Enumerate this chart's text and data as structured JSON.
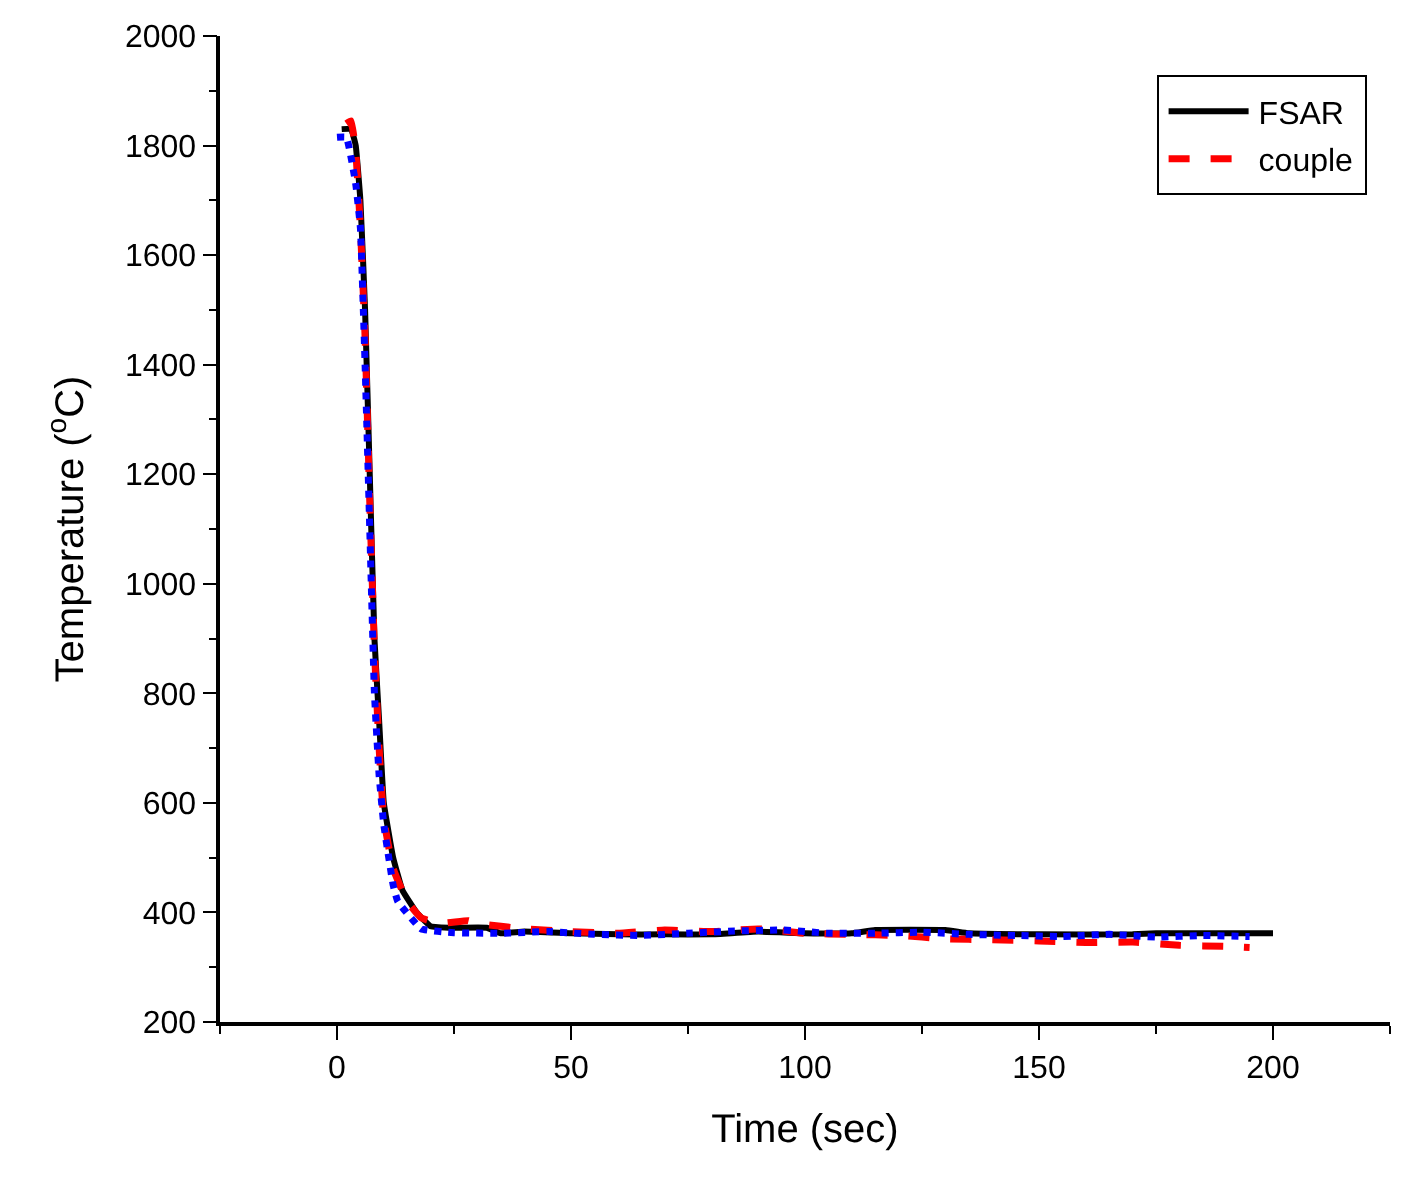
{
  "chart_data": {
    "type": "line",
    "xlabel": "Time (sec)",
    "ylabel": "Temperature ($^{o}$C)",
    "xlim": [
      -25,
      225
    ],
    "xticks": [
      0,
      50,
      100,
      150,
      200
    ],
    "ylim": [
      200,
      2000
    ],
    "yticks": [
      200,
      400,
      600,
      800,
      1000,
      1200,
      1400,
      1600,
      1800,
      2000
    ],
    "legend": "top right",
    "series": [
      {
        "name": "FSAR",
        "color": "#000000",
        "line_style": "solid",
        "x": [
          1,
          3,
          4,
          5,
          6,
          7,
          8,
          9,
          10,
          12,
          14,
          17,
          20,
          25,
          32,
          35,
          40,
          50,
          60,
          70,
          80,
          90,
          100,
          110,
          115,
          130,
          135,
          150,
          170,
          175,
          200
        ],
        "values": [
          1830,
          1830,
          1800,
          1700,
          1500,
          1200,
          900,
          750,
          600,
          500,
          440,
          400,
          375,
          372,
          372,
          362,
          365,
          362,
          360,
          360,
          360,
          365,
          362,
          362,
          368,
          368,
          362,
          360,
          360,
          362,
          362
        ]
      },
      {
        "name": "couple",
        "color": "#ff0000",
        "line_style": "dashed",
        "x": [
          2,
          3,
          4,
          5,
          6,
          7,
          8,
          9,
          10,
          12,
          15,
          18,
          22,
          28,
          30,
          40,
          50,
          60,
          70,
          80,
          90,
          100,
          110,
          120,
          130,
          140,
          150,
          160,
          170,
          180,
          190,
          195
        ],
        "values": [
          1840,
          1845,
          1790,
          1650,
          1450,
          1150,
          880,
          700,
          570,
          480,
          420,
          390,
          380,
          385,
          380,
          370,
          365,
          362,
          368,
          365,
          370,
          362,
          360,
          358,
          352,
          350,
          348,
          345,
          346,
          340,
          338,
          336
        ]
      },
      {
        "color": "#0000ff",
        "line_style": "dotted",
        "x": [
          0,
          2,
          4,
          5,
          6,
          7,
          8,
          9,
          10,
          12,
          13,
          18,
          25,
          35,
          45,
          55,
          65,
          75,
          85,
          95,
          105,
          115,
          125,
          135,
          145,
          155,
          165,
          175,
          185,
          195
        ],
        "values": [
          1815,
          1815,
          1730,
          1650,
          1400,
          1100,
          800,
          650,
          560,
          450,
          420,
          370,
          363,
          362,
          365,
          360,
          358,
          362,
          366,
          368,
          362,
          362,
          364,
          360,
          358,
          356,
          360,
          355,
          358,
          356
        ]
      }
    ]
  }
}
